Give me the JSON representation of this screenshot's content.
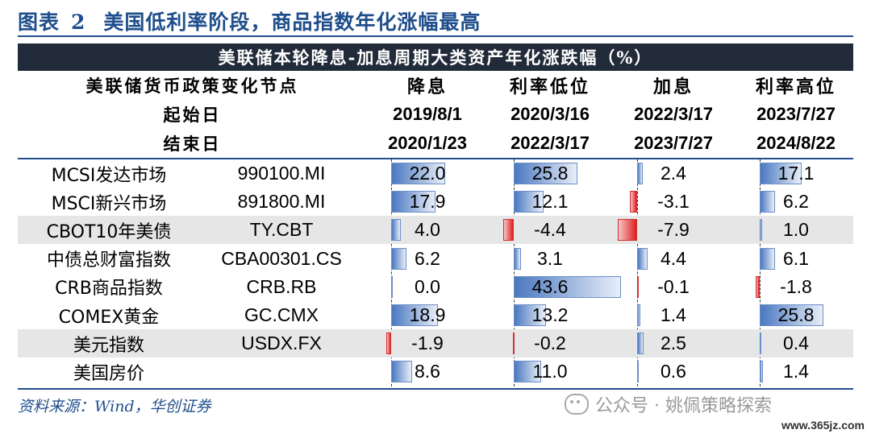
{
  "title": {
    "figure_label": "图表",
    "figure_number": "2",
    "text": "美国低利率阶段，商品指数年化涨幅最高"
  },
  "table": {
    "caption": "美联储本轮降息-加息周期大类资产年化涨跌幅（%）",
    "header_rows": [
      {
        "label": "美联储货币政策变化节点",
        "values": [
          "降息",
          "利率低位",
          "加息",
          "利率高位"
        ]
      },
      {
        "label": "起始日",
        "values": [
          "2019/8/1",
          "2020/3/16",
          "2022/3/17",
          "2023/7/27"
        ]
      },
      {
        "label": "结束日",
        "values": [
          "2020/1/23",
          "2022/3/17",
          "2023/7/27",
          "2024/8/22"
        ]
      }
    ],
    "rows": [
      {
        "name": "MCSI发达市场",
        "code": "990100.MI",
        "values": [
          "22.0",
          "25.8",
          "2.4",
          "17.1"
        ]
      },
      {
        "name": "MSCI新兴市场",
        "code": "891800.MI",
        "values": [
          "17.9",
          "12.1",
          "-3.1",
          "6.2"
        ]
      },
      {
        "name": "CBOT10年美债",
        "code": "TY.CBT",
        "values": [
          "4.0",
          "-4.4",
          "-7.9",
          "1.0"
        ]
      },
      {
        "name": "中债总财富指数",
        "code": "CBA00301.CS",
        "values": [
          "6.2",
          "3.1",
          "4.4",
          "6.1"
        ]
      },
      {
        "name": "CRB商品指数",
        "code": "CRB.RB",
        "values": [
          "0.0",
          "43.6",
          "-0.1",
          "-1.8"
        ]
      },
      {
        "name": "COMEX黄金",
        "code": "GC.CMX",
        "values": [
          "18.9",
          "13.2",
          "1.4",
          "25.8"
        ]
      },
      {
        "name": "美元指数",
        "code": "USDX.FX",
        "values": [
          "-1.9",
          "-0.2",
          "2.5",
          "0.4"
        ]
      },
      {
        "name": "美国房价",
        "code": "",
        "values": [
          "8.6",
          "11.0",
          "0.6",
          "1.4"
        ]
      }
    ]
  },
  "source": "资料来源：Wind，华创证券",
  "watermark": "公众号 · 姚佩策略探索",
  "site": "www.365jz.com",
  "colors": {
    "accent": "#1f4e8c",
    "band": "#222b3a",
    "positive_bar": "#4a78c0",
    "negative_bar": "#e02020",
    "shade": "#e6e6e6"
  }
}
